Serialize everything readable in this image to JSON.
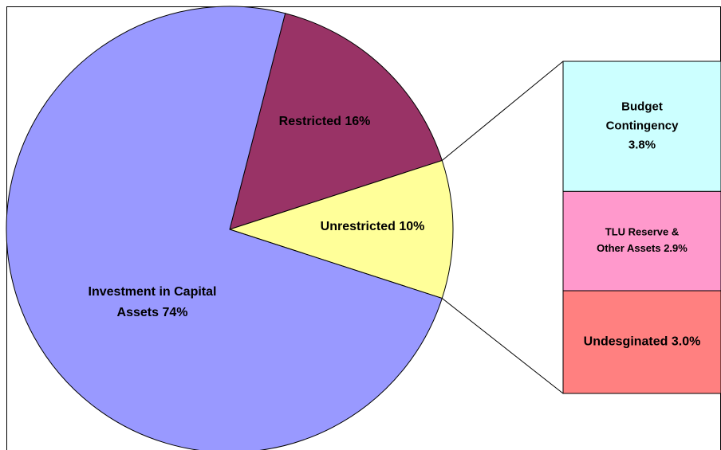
{
  "chart_data": [
    {
      "type": "pie",
      "values": [
        16,
        10,
        74
      ],
      "value_labels": [
        "Restricted 16%",
        "Unrestricted 10%",
        "Investment in Capital Assets 74%"
      ],
      "colors": [
        "#993366",
        "#ffff99",
        "#9999ff"
      ]
    },
    {
      "type": "bar",
      "values": [
        3.8,
        2.9,
        3.0
      ],
      "value_labels": [
        "Budget Contingency 3.8%",
        "TLU Reserve & Other Assets 2.9%",
        "Undesginated 3.0%"
      ],
      "colors": [
        "#ccffff",
        "#ff99cc",
        "#ff8080"
      ]
    }
  ]
}
